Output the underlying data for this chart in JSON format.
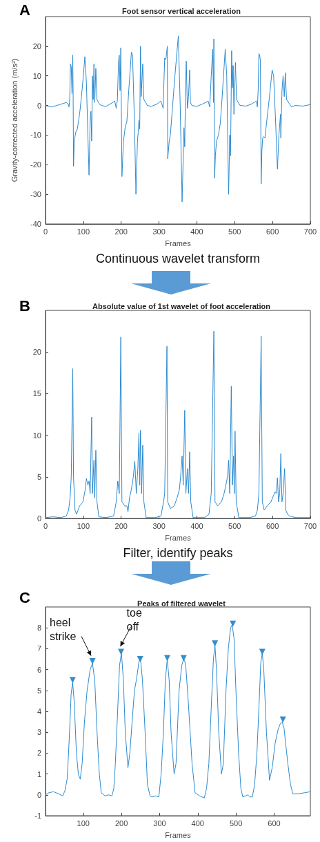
{
  "chart_data": [
    {
      "type": "line",
      "title": "Foot sensor vertical acceleration",
      "xlabel": "Frames",
      "ylabel": "Gravity-corrected acceleration (m/s²)",
      "xlim": [
        0,
        700
      ],
      "xticks": [
        0,
        100,
        200,
        300,
        400,
        500,
        600,
        700
      ],
      "ylim": [
        -40,
        30
      ],
      "yticks": [
        -40,
        -30,
        -20,
        -10,
        0,
        10,
        20
      ],
      "grid": false,
      "marker": "none",
      "annotations": [
        "A"
      ],
      "series": [
        {
          "color": "#2b8ad0",
          "x": [
            0,
            8,
            15,
            30,
            45,
            55,
            60,
            62,
            64,
            66,
            68,
            70,
            72,
            73,
            74,
            76,
            80,
            84,
            90,
            95,
            100,
            104,
            108,
            112,
            115,
            118,
            120,
            122,
            124,
            126,
            128,
            130,
            133,
            136,
            142,
            148,
            160,
            175,
            183,
            187,
            190,
            193,
            195,
            197,
            199,
            202,
            206,
            211,
            215,
            220,
            227,
            230,
            235,
            239,
            243,
            245,
            247,
            249,
            251,
            253,
            257,
            260,
            265,
            269,
            280,
            295,
            305,
            311,
            313,
            315,
            318,
            322,
            323,
            327,
            330,
            336,
            342,
            351,
            356,
            361,
            366,
            368,
            370,
            372,
            375,
            378,
            381,
            383,
            387,
            400,
            415,
            430,
            434,
            438,
            442,
            444,
            445,
            447,
            449,
            452,
            457,
            462,
            468,
            475,
            479,
            484,
            487,
            489,
            492,
            494,
            496,
            498,
            502,
            505,
            514,
            530,
            545,
            557,
            560,
            562,
            564,
            566,
            568,
            570,
            572,
            574,
            577,
            580,
            585,
            592,
            599,
            603,
            608,
            613,
            617,
            621,
            622,
            625,
            628,
            631,
            634,
            637,
            645,
            650,
            660,
            680,
            700
          ],
          "values": [
            0,
            -0.3,
            -0.5,
            0,
            0.6,
            1,
            0.5,
            -0.5,
            2,
            14,
            13,
            4,
            17,
            4,
            -20.5,
            -12,
            -9,
            -8,
            -3,
            3,
            10,
            16.5,
            8,
            -10,
            -23.5,
            -5,
            -2,
            -12,
            10,
            2,
            14,
            1,
            12.5,
            2,
            0.5,
            0,
            -0.3,
            0.8,
            1.5,
            -1,
            2,
            15,
            17,
            5,
            19.5,
            -24,
            -12,
            -7,
            -5.5,
            5,
            18,
            17,
            -5,
            -30,
            -12,
            -9,
            -5,
            -8,
            20,
            3,
            14,
            2,
            1,
            0,
            -0.3,
            0.5,
            1.5,
            -1,
            8,
            16,
            15.5,
            20,
            -18,
            -12,
            -10,
            0,
            10,
            23.5,
            0,
            -32.5,
            -7.5,
            -14,
            5,
            15,
            -1,
            3,
            12,
            1,
            0,
            -0.3,
            0.5,
            1.5,
            -0.5,
            10,
            19,
            1,
            22.5,
            -24.5,
            -17,
            -12,
            -10,
            -6,
            5,
            19,
            10,
            -30,
            -10,
            -17,
            18.5,
            6,
            13.5,
            -3,
            14.5,
            2,
            0,
            -0.2,
            0.5,
            1.5,
            -0.5,
            5,
            17.5,
            17,
            15,
            -26.5,
            -15,
            -11,
            -10.5,
            -11,
            -5,
            3,
            12,
            10,
            -5,
            -21.5,
            -10,
            -3,
            -11,
            5,
            10,
            3,
            11,
            2,
            0.5,
            -0.5,
            0,
            -0.2,
            0.3
          ]
        }
      ]
    },
    {
      "type": "line",
      "title": "Absolute value of 1st wavelet of foot acceleration",
      "xlabel": "Frames",
      "xlim": [
        0,
        700
      ],
      "xticks": [
        0,
        100,
        200,
        300,
        400,
        500,
        600,
        700
      ],
      "ylim": [
        0,
        25
      ],
      "yticks": [
        0,
        5,
        10,
        15,
        20
      ],
      "grid": false,
      "marker": "none",
      "annotations": [
        "B",
        "Continuous wavelet transform"
      ],
      "series": [
        {
          "color": "#2b8ad0",
          "x": [
            0,
            20,
            40,
            55,
            61,
            65,
            68,
            72,
            74,
            78,
            82,
            90,
            99,
            105,
            108,
            112,
            115,
            118,
            122,
            124,
            128,
            130,
            133,
            136,
            141,
            160,
            180,
            187,
            191,
            195,
            199,
            202,
            210,
            215,
            218,
            222,
            227,
            232,
            236,
            240,
            244,
            247,
            249,
            251,
            254,
            257,
            260,
            266,
            290,
            305,
            312,
            315,
            321,
            323,
            330,
            340,
            348,
            354,
            357,
            361,
            364,
            368,
            371,
            375,
            378,
            381,
            384,
            390,
            420,
            432,
            438,
            445,
            448,
            455,
            465,
            472,
            478,
            481,
            484,
            487,
            491,
            494,
            497,
            499,
            501,
            504,
            511,
            540,
            555,
            560,
            564,
            570,
            573,
            578,
            586,
            596,
            603,
            607,
            610,
            613,
            616,
            619,
            622,
            625,
            628,
            632,
            635,
            640,
            645,
            660,
            700
          ],
          "values": [
            0.1,
            0.2,
            0.1,
            0.3,
            1,
            2.5,
            5,
            18,
            5,
            1,
            0.5,
            1.5,
            2,
            3.5,
            4.8,
            4,
            4.5,
            3,
            12.2,
            3,
            7,
            2.5,
            8.2,
            2,
            0.2,
            0.1,
            0.3,
            2,
            4.5,
            3,
            21.8,
            2,
            1.5,
            1.5,
            0.8,
            2.5,
            3.5,
            5,
            6.9,
            3,
            6,
            10.3,
            4,
            10.6,
            3,
            8.8,
            2,
            0.1,
            0.1,
            0.3,
            2,
            3,
            20.7,
            2,
            1.2,
            1.5,
            2.5,
            3.5,
            5,
            7.5,
            4,
            13,
            3,
            6,
            3,
            8,
            2,
            0.1,
            0.1,
            0.5,
            3,
            22.5,
            2,
            1.5,
            2,
            3,
            4.3,
            5,
            7,
            3,
            15.9,
            4,
            7.5,
            3,
            10.5,
            2,
            0.1,
            0.1,
            0.3,
            1,
            3,
            21.9,
            2,
            1,
            1.5,
            2,
            2.8,
            3.2,
            3,
            4.9,
            2,
            3,
            7.8,
            2,
            3,
            6,
            1,
            0.5,
            0.3,
            0.1,
            0.1
          ]
        }
      ]
    },
    {
      "type": "line",
      "title": "Peaks of filtered wavelet",
      "xlabel": "Frames",
      "xlim": [
        1,
        695
      ],
      "xticks": [
        100,
        200,
        300,
        400,
        500,
        600
      ],
      "ylim": [
        -1,
        9
      ],
      "yticks": [
        -1,
        0,
        1,
        2,
        3,
        4,
        5,
        6,
        7,
        8
      ],
      "grid": false,
      "marker": "none",
      "annotations": [
        "C",
        "Filter, identify peaks",
        {
          "text": "heel strike",
          "x": 124,
          "y": 6.4
        },
        {
          "text": "toe off",
          "x": 199,
          "y": 6.85
        }
      ],
      "series": [
        {
          "color": "#2b8ad0",
          "x": [
            1,
            10,
            22,
            35,
            46,
            52,
            58,
            64,
            68,
            72,
            76,
            82,
            87,
            92,
            97,
            103,
            110,
            118,
            124,
            130,
            136,
            142,
            147,
            157,
            166,
            175,
            180,
            184,
            190,
            195,
            200,
            205,
            210,
            217,
            222,
            228,
            234,
            240,
            246,
            250,
            255,
            262,
            268,
            275,
            280,
            290,
            298,
            304,
            310,
            315,
            320,
            325,
            330,
            338,
            343,
            351,
            358,
            363,
            368,
            375,
            385,
            393,
            405,
            417,
            423,
            429,
            436,
            441,
            445,
            449,
            455,
            462,
            467,
            474,
            480,
            486,
            490,
            495,
            500,
            507,
            513,
            518,
            525,
            531,
            537,
            543,
            549,
            555,
            561,
            565,
            569,
            573,
            580,
            588,
            595,
            603,
            610,
            616,
            621,
            626,
            630,
            636,
            643,
            649,
            663,
            680,
            695
          ],
          "values": [
            0,
            0.1,
            0.15,
            0.05,
            -0.05,
            0.2,
            0.8,
            3,
            4.8,
            5.4,
            4.5,
            2,
            1,
            0.75,
            1.5,
            3.5,
            5,
            6,
            6.3,
            5.5,
            3,
            1,
            0.1,
            -0.05,
            0,
            -0.05,
            0.3,
            1.5,
            4,
            6.2,
            6.8,
            5.5,
            3,
            1.3,
            2,
            3.5,
            5,
            5.6,
            6.4,
            6.5,
            5.5,
            3,
            0.5,
            -0.05,
            -0.1,
            -0.05,
            -0.1,
            1,
            3,
            5.5,
            6.5,
            5.5,
            3,
            1,
            1.5,
            5,
            6.2,
            6.5,
            6.3,
            4.5,
            1.5,
            0.1,
            -0.05,
            -0.15,
            0.3,
            1.5,
            4.5,
            6.5,
            7.2,
            6,
            3,
            1,
            1.5,
            5,
            7,
            8,
            8.15,
            7.5,
            5,
            2,
            0.3,
            -0.1,
            -0.05,
            0,
            -0.1,
            -0.1,
            0.5,
            2,
            4.5,
            6.3,
            6.8,
            6,
            3,
            0.7,
            1.3,
            2.5,
            3.1,
            3.4,
            3.5,
            3.2,
            2.5,
            1.5,
            0.5,
            0.05,
            0.05,
            0.1,
            0.15
          ]
        },
        {
          "type": "scatter",
          "color": "#0072bd",
          "marker": "triangle",
          "x": [
            72,
            124,
            199,
            249,
            320,
            363,
            445,
            492,
            569,
            623
          ],
          "values": [
            5.5,
            6.4,
            6.85,
            6.5,
            6.55,
            6.55,
            7.25,
            8.2,
            6.85,
            3.6
          ]
        }
      ]
    }
  ]
}
